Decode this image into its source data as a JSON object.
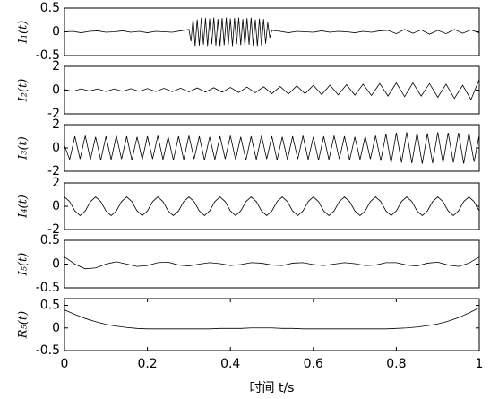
{
  "chart_data": [
    {
      "type": "line",
      "ylabel": "I₁(t)",
      "color": "#000000",
      "xlim": [
        0,
        1
      ],
      "ylim": [
        -0.5,
        0.5
      ],
      "yticks": [
        -0.5,
        0,
        0.5
      ],
      "x": [
        0,
        0.02,
        0.04,
        0.06,
        0.08,
        0.1,
        0.12,
        0.14,
        0.16,
        0.18,
        0.2,
        0.22,
        0.24,
        0.26,
        0.28,
        0.3,
        0.305,
        0.31,
        0.315,
        0.32,
        0.325,
        0.33,
        0.335,
        0.34,
        0.345,
        0.35,
        0.355,
        0.36,
        0.365,
        0.37,
        0.375,
        0.38,
        0.385,
        0.39,
        0.395,
        0.4,
        0.405,
        0.41,
        0.415,
        0.42,
        0.425,
        0.43,
        0.435,
        0.44,
        0.445,
        0.45,
        0.455,
        0.46,
        0.465,
        0.47,
        0.475,
        0.48,
        0.485,
        0.49,
        0.495,
        0.5,
        0.52,
        0.54,
        0.56,
        0.58,
        0.6,
        0.62,
        0.64,
        0.66,
        0.68,
        0.7,
        0.72,
        0.74,
        0.76,
        0.78,
        0.8,
        0.82,
        0.84,
        0.86,
        0.88,
        0.9,
        0.92,
        0.94,
        0.96,
        0.98,
        1
      ],
      "values": [
        0,
        0.01,
        -0.02,
        0.01,
        0.02,
        -0.01,
        0,
        0.02,
        -0.01,
        0.01,
        -0.02,
        0.01,
        0,
        -0.01,
        0.02,
        0.05,
        -0.2,
        0.28,
        -0.3,
        0.26,
        -0.29,
        0.3,
        -0.27,
        0.29,
        -0.3,
        0.28,
        -0.26,
        0.3,
        -0.29,
        0.27,
        -0.3,
        0.29,
        -0.28,
        0.3,
        -0.27,
        0.28,
        -0.3,
        0.29,
        -0.26,
        0.3,
        -0.28,
        0.27,
        -0.3,
        0.29,
        -0.27,
        0.3,
        -0.29,
        0.26,
        -0.3,
        0.28,
        -0.29,
        0.27,
        -0.25,
        0.2,
        -0.12,
        0.03,
        0.01,
        -0.02,
        0.01,
        0,
        -0.01,
        0.02,
        -0.01,
        0.01,
        0,
        -0.02,
        0.01,
        -0.01,
        0.02,
        0.03,
        -0.04,
        0.05,
        -0.03,
        0.04,
        -0.05,
        0.03,
        -0.04,
        0.05,
        -0.03,
        0.04,
        -0.02
      ]
    },
    {
      "type": "line",
      "ylabel": "I₂(t)",
      "color": "#000000",
      "xlim": [
        0,
        1
      ],
      "ylim": [
        -2,
        2
      ],
      "yticks": [
        -2,
        0,
        2
      ],
      "x": [
        0,
        0.02,
        0.04,
        0.06,
        0.08,
        0.1,
        0.12,
        0.14,
        0.16,
        0.18,
        0.2,
        0.22,
        0.24,
        0.26,
        0.28,
        0.3,
        0.32,
        0.34,
        0.36,
        0.38,
        0.4,
        0.42,
        0.44,
        0.46,
        0.48,
        0.5,
        0.52,
        0.54,
        0.56,
        0.58,
        0.6,
        0.62,
        0.64,
        0.66,
        0.68,
        0.7,
        0.72,
        0.74,
        0.76,
        0.78,
        0.8,
        0.82,
        0.84,
        0.86,
        0.88,
        0.9,
        0.92,
        0.94,
        0.96,
        0.98,
        1
      ],
      "values": [
        0.05,
        -0.1,
        0.1,
        -0.08,
        0.1,
        -0.12,
        0.1,
        -0.1,
        0.12,
        -0.1,
        0.13,
        -0.12,
        0.15,
        -0.13,
        0.16,
        -0.15,
        0.18,
        -0.16,
        0.2,
        -0.18,
        0.22,
        -0.2,
        0.25,
        -0.22,
        0.28,
        -0.3,
        0.3,
        -0.32,
        0.35,
        -0.3,
        0.4,
        -0.38,
        0.42,
        -0.4,
        0.45,
        -0.42,
        0.5,
        -0.45,
        0.55,
        -0.5,
        0.6,
        -0.55,
        0.6,
        -0.5,
        0.55,
        -0.6,
        0.5,
        -0.7,
        0.4,
        -0.8,
        0.9
      ]
    },
    {
      "type": "line",
      "ylabel": "I₃(t)",
      "color": "#000000",
      "xlim": [
        0,
        1
      ],
      "ylim": [
        -2,
        2
      ],
      "yticks": [
        -2,
        0,
        2
      ],
      "x": [
        0,
        0.0125,
        0.025,
        0.0375,
        0.05,
        0.0625,
        0.075,
        0.0875,
        0.1,
        0.1125,
        0.125,
        0.1375,
        0.15,
        0.1625,
        0.175,
        0.1875,
        0.2,
        0.2125,
        0.225,
        0.2375,
        0.25,
        0.2625,
        0.275,
        0.2875,
        0.3,
        0.3125,
        0.325,
        0.3375,
        0.35,
        0.3625,
        0.375,
        0.3875,
        0.4,
        0.4125,
        0.425,
        0.4375,
        0.45,
        0.4625,
        0.475,
        0.4875,
        0.5,
        0.5125,
        0.525,
        0.5375,
        0.55,
        0.5625,
        0.575,
        0.5875,
        0.6,
        0.6125,
        0.625,
        0.6375,
        0.65,
        0.6625,
        0.675,
        0.6875,
        0.7,
        0.7125,
        0.725,
        0.7375,
        0.75,
        0.7625,
        0.775,
        0.7875,
        0.8,
        0.8125,
        0.825,
        0.8375,
        0.85,
        0.8625,
        0.875,
        0.8875,
        0.9,
        0.9125,
        0.925,
        0.9375,
        0.95,
        0.9625,
        0.975,
        0.9875,
        1
      ],
      "values": [
        0.2,
        -1,
        1,
        -0.95,
        1.05,
        -1,
        0.95,
        -1.05,
        1,
        -1,
        1.05,
        -0.95,
        1,
        -1.05,
        0.95,
        -1,
        1,
        -0.95,
        1.05,
        -1,
        0.95,
        -1.05,
        1,
        -1,
        1.05,
        -0.95,
        1,
        -1.05,
        0.95,
        -1,
        1,
        -0.95,
        1.05,
        -1,
        0.95,
        -1.05,
        1,
        -1,
        1.05,
        -0.95,
        1,
        -1.05,
        0.95,
        -1,
        1,
        -0.95,
        1.05,
        -1,
        0.95,
        -1.05,
        1,
        -1,
        1.05,
        -0.95,
        1,
        -1.05,
        0.95,
        -1,
        1,
        -0.95,
        1.05,
        -1.1,
        1.2,
        -1.3,
        1.3,
        -1.25,
        1.35,
        -1.3,
        1.3,
        -1.35,
        1.25,
        -1.3,
        1.35,
        -1.3,
        1.3,
        -1.25,
        1.3,
        -1.35,
        1.3,
        -1.2,
        1.1
      ]
    },
    {
      "type": "line",
      "ylabel": "I₄(t)",
      "color": "#000000",
      "xlim": [
        0,
        1
      ],
      "ylim": [
        -2,
        2
      ],
      "yticks": [
        -2,
        0,
        2
      ],
      "x": [
        0,
        0.0125,
        0.025,
        0.0375,
        0.05,
        0.0625,
        0.075,
        0.0875,
        0.1,
        0.1125,
        0.125,
        0.1375,
        0.15,
        0.1625,
        0.175,
        0.1875,
        0.2,
        0.2125,
        0.225,
        0.2375,
        0.25,
        0.2625,
        0.275,
        0.2875,
        0.3,
        0.3125,
        0.325,
        0.3375,
        0.35,
        0.3625,
        0.375,
        0.3875,
        0.4,
        0.4125,
        0.425,
        0.4375,
        0.45,
        0.4625,
        0.475,
        0.4875,
        0.5,
        0.5125,
        0.525,
        0.5375,
        0.55,
        0.5625,
        0.575,
        0.5875,
        0.6,
        0.6125,
        0.625,
        0.6375,
        0.65,
        0.6625,
        0.675,
        0.6875,
        0.7,
        0.7125,
        0.725,
        0.7375,
        0.75,
        0.7625,
        0.775,
        0.7875,
        0.8,
        0.8125,
        0.825,
        0.8375,
        0.85,
        0.8625,
        0.875,
        0.8875,
        0.9,
        0.9125,
        0.925,
        0.9375,
        0.95,
        0.9625,
        0.975,
        0.9875,
        1
      ],
      "values": [
        0.8,
        0.4,
        -0.4,
        -0.8,
        -0.4,
        0.4,
        0.8,
        0.4,
        -0.4,
        -0.8,
        -0.4,
        0.4,
        0.8,
        0.4,
        -0.4,
        -0.8,
        -0.4,
        0.4,
        0.8,
        0.4,
        -0.4,
        -0.8,
        -0.4,
        0.4,
        0.8,
        0.4,
        -0.4,
        -0.8,
        -0.4,
        0.4,
        0.8,
        0.4,
        -0.4,
        -0.8,
        -0.4,
        0.4,
        0.8,
        0.4,
        -0.4,
        -0.8,
        -0.4,
        0.4,
        0.8,
        0.4,
        -0.4,
        -0.8,
        -0.4,
        0.4,
        0.8,
        0.4,
        -0.4,
        -0.8,
        -0.4,
        0.4,
        0.8,
        0.4,
        -0.4,
        -0.8,
        -0.4,
        0.4,
        0.8,
        0.4,
        -0.4,
        -0.8,
        -0.4,
        0.4,
        0.8,
        0.4,
        -0.4,
        -0.8,
        -0.4,
        0.4,
        0.8,
        0.4,
        -0.4,
        -0.8,
        -0.4,
        0.4,
        0.8,
        0.4,
        -0.4
      ]
    },
    {
      "type": "line",
      "ylabel": "I₅(t)",
      "color": "#000000",
      "xlim": [
        0,
        1
      ],
      "ylim": [
        -0.5,
        0.5
      ],
      "yticks": [
        -0.5,
        0,
        0.5
      ],
      "x": [
        0,
        0.025,
        0.05,
        0.075,
        0.1,
        0.125,
        0.15,
        0.175,
        0.2,
        0.225,
        0.25,
        0.275,
        0.3,
        0.325,
        0.35,
        0.375,
        0.4,
        0.425,
        0.45,
        0.475,
        0.5,
        0.525,
        0.55,
        0.575,
        0.6,
        0.625,
        0.65,
        0.675,
        0.7,
        0.725,
        0.75,
        0.775,
        0.8,
        0.825,
        0.85,
        0.875,
        0.9,
        0.925,
        0.95,
        0.975,
        1
      ],
      "values": [
        0.15,
        0,
        -0.1,
        -0.08,
        0,
        0.05,
        0,
        -0.05,
        -0.03,
        0.03,
        0.04,
        -0.02,
        -0.04,
        0,
        0.03,
        0.01,
        -0.03,
        -0.01,
        0.03,
        0.02,
        -0.02,
        -0.03,
        0.02,
        0.03,
        -0.01,
        -0.03,
        0,
        0.03,
        0.01,
        -0.03,
        -0.02,
        0.03,
        0.03,
        -0.02,
        -0.04,
        0.02,
        0.04,
        -0.02,
        -0.05,
        0.02,
        0.15
      ]
    },
    {
      "type": "line",
      "ylabel": "R₅(t)",
      "color": "#000000",
      "xlim": [
        0,
        1
      ],
      "ylim": [
        -0.5,
        0.65
      ],
      "yticks": [
        -0.5,
        0,
        0.5
      ],
      "xticks": [
        0,
        0.2,
        0.4,
        0.6,
        0.8,
        1
      ],
      "xlabel": "时间  t/s",
      "x": [
        0,
        0.025,
        0.05,
        0.075,
        0.1,
        0.125,
        0.15,
        0.175,
        0.2,
        0.225,
        0.25,
        0.275,
        0.3,
        0.325,
        0.35,
        0.375,
        0.4,
        0.425,
        0.45,
        0.475,
        0.5,
        0.525,
        0.55,
        0.575,
        0.6,
        0.625,
        0.65,
        0.675,
        0.7,
        0.725,
        0.75,
        0.775,
        0.8,
        0.825,
        0.85,
        0.875,
        0.9,
        0.925,
        0.95,
        0.975,
        1
      ],
      "values": [
        0.4,
        0.3,
        0.21,
        0.14,
        0.08,
        0.04,
        0.01,
        -0.01,
        -0.02,
        -0.02,
        -0.02,
        -0.02,
        -0.02,
        -0.02,
        -0.02,
        -0.01,
        -0.01,
        -0.01,
        0,
        0,
        0,
        -0.01,
        -0.01,
        -0.02,
        -0.02,
        -0.02,
        -0.02,
        -0.02,
        -0.02,
        -0.02,
        -0.02,
        -0.02,
        -0.01,
        0,
        0.02,
        0.05,
        0.09,
        0.15,
        0.23,
        0.33,
        0.45
      ]
    }
  ]
}
